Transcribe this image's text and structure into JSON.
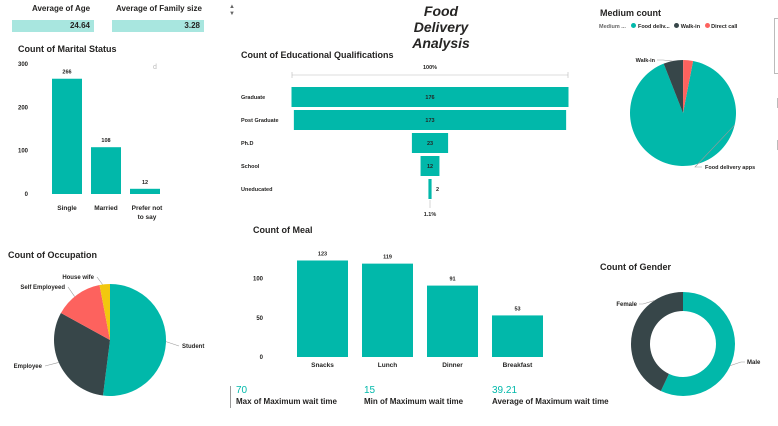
{
  "header": {
    "title": "Food Delivery Analysis"
  },
  "cards": [
    {
      "label": "Average of Age",
      "value": "24.64"
    },
    {
      "label": "Average of Family size",
      "value": "3.28"
    }
  ],
  "kpis": [
    {
      "value": "70",
      "label": "Max of Maximum wait time"
    },
    {
      "value": "15",
      "label": "Min of Maximum wait time"
    },
    {
      "value": "39.21",
      "label": "Average of Maximum wait time"
    }
  ],
  "colors": {
    "teal": "#01b8aa",
    "dark": "#374649",
    "salmon": "#fd625e",
    "yellow": "#f2c80f"
  },
  "chart_data": [
    {
      "id": "marital",
      "type": "bar",
      "title": "Count of Marital Status",
      "categories": [
        "Single",
        "Married",
        "Prefer not to say"
      ],
      "values": [
        266,
        108,
        12
      ],
      "ylim": [
        0,
        300
      ],
      "yticks": [
        0,
        100,
        200,
        300
      ]
    },
    {
      "id": "education",
      "type": "bar",
      "orientation": "funnel",
      "title": "Count of Educational Qualifications",
      "categories": [
        "Graduate",
        "Post Graduate",
        "Ph.D",
        "School",
        "Uneducated"
      ],
      "values": [
        176,
        173,
        23,
        12,
        2
      ],
      "top_label": "100%",
      "bottom_label": "1.1%"
    },
    {
      "id": "meal",
      "type": "bar",
      "title": "Count of Meal",
      "categories": [
        "Snacks",
        "Lunch",
        "Dinner",
        "Breakfast"
      ],
      "values": [
        123,
        119,
        91,
        53
      ],
      "ylim": [
        0,
        130
      ],
      "yticks": [
        0,
        50,
        100
      ]
    },
    {
      "id": "medium",
      "type": "pie",
      "title": "Medium count",
      "legend_title": "Medium ...",
      "legend": [
        "Food deliv...",
        "Walk-in",
        "Direct call"
      ],
      "categories": [
        "Food delivery apps",
        "Walk-in",
        "Direct call"
      ],
      "values": [
        91,
        6,
        3
      ],
      "slice_labels": [
        "Food delivery apps",
        "Walk-in",
        ""
      ],
      "colors": [
        "#01b8aa",
        "#374649",
        "#fd625e"
      ]
    },
    {
      "id": "occupation",
      "type": "pie",
      "title": "Count of Occupation",
      "categories": [
        "Student",
        "Employee",
        "Self Employeed",
        "House wife"
      ],
      "values": [
        52,
        31,
        14,
        3
      ],
      "colors": [
        "#01b8aa",
        "#374649",
        "#fd625e",
        "#f2c80f"
      ]
    },
    {
      "id": "gender",
      "type": "pie",
      "donut": true,
      "title": "Count of Gender",
      "categories": [
        "Male",
        "Female"
      ],
      "values": [
        57,
        43
      ],
      "colors": [
        "#01b8aa",
        "#374649"
      ]
    }
  ]
}
